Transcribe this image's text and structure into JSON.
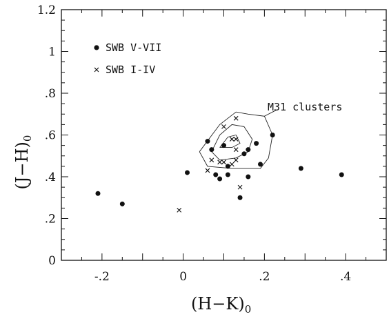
{
  "chart_data": {
    "type": "scatter",
    "xlabel": "(H−K)",
    "xlabel_sub": "0",
    "ylabel": "(J−H)",
    "ylabel_sub": "0",
    "xlim": [
      -0.3,
      0.5
    ],
    "ylim": [
      0,
      1.2
    ],
    "x_ticks": [
      {
        "value": -0.2,
        "label": "-.2"
      },
      {
        "value": 0,
        "label": "0"
      },
      {
        "value": 0.2,
        "label": ".2"
      },
      {
        "value": 0.4,
        "label": ".4"
      }
    ],
    "y_ticks": [
      {
        "value": 0,
        "label": "0"
      },
      {
        "value": 0.2,
        "label": ".2"
      },
      {
        "value": 0.4,
        "label": ".4"
      },
      {
        "value": 0.6,
        "label": ".6"
      },
      {
        "value": 0.8,
        "label": ".8"
      },
      {
        "value": 1.0,
        "label": "1"
      },
      {
        "value": 1.2,
        "label": "1.2"
      }
    ],
    "legend_position": "top-left",
    "series": [
      {
        "name": "SWB V-VII",
        "marker": "dot",
        "points": [
          [
            -0.21,
            0.32
          ],
          [
            -0.15,
            0.27
          ],
          [
            0.01,
            0.42
          ],
          [
            0.06,
            0.57
          ],
          [
            0.07,
            0.53
          ],
          [
            0.08,
            0.41
          ],
          [
            0.09,
            0.39
          ],
          [
            0.1,
            0.55
          ],
          [
            0.11,
            0.45
          ],
          [
            0.11,
            0.41
          ],
          [
            0.14,
            0.3
          ],
          [
            0.15,
            0.51
          ],
          [
            0.16,
            0.4
          ],
          [
            0.16,
            0.53
          ],
          [
            0.18,
            0.56
          ],
          [
            0.19,
            0.46
          ],
          [
            0.22,
            0.6
          ],
          [
            0.29,
            0.44
          ],
          [
            0.39,
            0.41
          ]
        ]
      },
      {
        "name": "SWB I-IV",
        "marker": "cross",
        "points": [
          [
            -0.01,
            0.24
          ],
          [
            0.06,
            0.43
          ],
          [
            0.07,
            0.48
          ],
          [
            0.09,
            0.47
          ],
          [
            0.1,
            0.64
          ],
          [
            0.1,
            0.47
          ],
          [
            0.12,
            0.58
          ],
          [
            0.12,
            0.46
          ],
          [
            0.13,
            0.68
          ],
          [
            0.13,
            0.58
          ],
          [
            0.13,
            0.53
          ],
          [
            0.13,
            0.48
          ],
          [
            0.14,
            0.35
          ]
        ]
      }
    ],
    "contours": {
      "label": "M31 clusters",
      "rings": [
        [
          [
            0.04,
            0.52
          ],
          [
            0.09,
            0.65
          ],
          [
            0.13,
            0.71
          ],
          [
            0.16,
            0.7
          ],
          [
            0.2,
            0.69
          ],
          [
            0.22,
            0.6
          ],
          [
            0.21,
            0.49
          ],
          [
            0.19,
            0.44
          ],
          [
            0.12,
            0.44
          ],
          [
            0.06,
            0.45
          ],
          [
            0.04,
            0.52
          ]
        ],
        [
          [
            0.07,
            0.52
          ],
          [
            0.09,
            0.6
          ],
          [
            0.12,
            0.65
          ],
          [
            0.15,
            0.64
          ],
          [
            0.17,
            0.58
          ],
          [
            0.16,
            0.52
          ],
          [
            0.13,
            0.49
          ],
          [
            0.09,
            0.48
          ],
          [
            0.07,
            0.52
          ]
        ],
        [
          [
            0.09,
            0.54
          ],
          [
            0.11,
            0.59
          ],
          [
            0.13,
            0.6
          ],
          [
            0.14,
            0.56
          ],
          [
            0.12,
            0.54
          ],
          [
            0.09,
            0.54
          ]
        ]
      ],
      "leader": [
        [
          0.2,
          0.69
        ],
        [
          0.23,
          0.72
        ]
      ]
    }
  }
}
